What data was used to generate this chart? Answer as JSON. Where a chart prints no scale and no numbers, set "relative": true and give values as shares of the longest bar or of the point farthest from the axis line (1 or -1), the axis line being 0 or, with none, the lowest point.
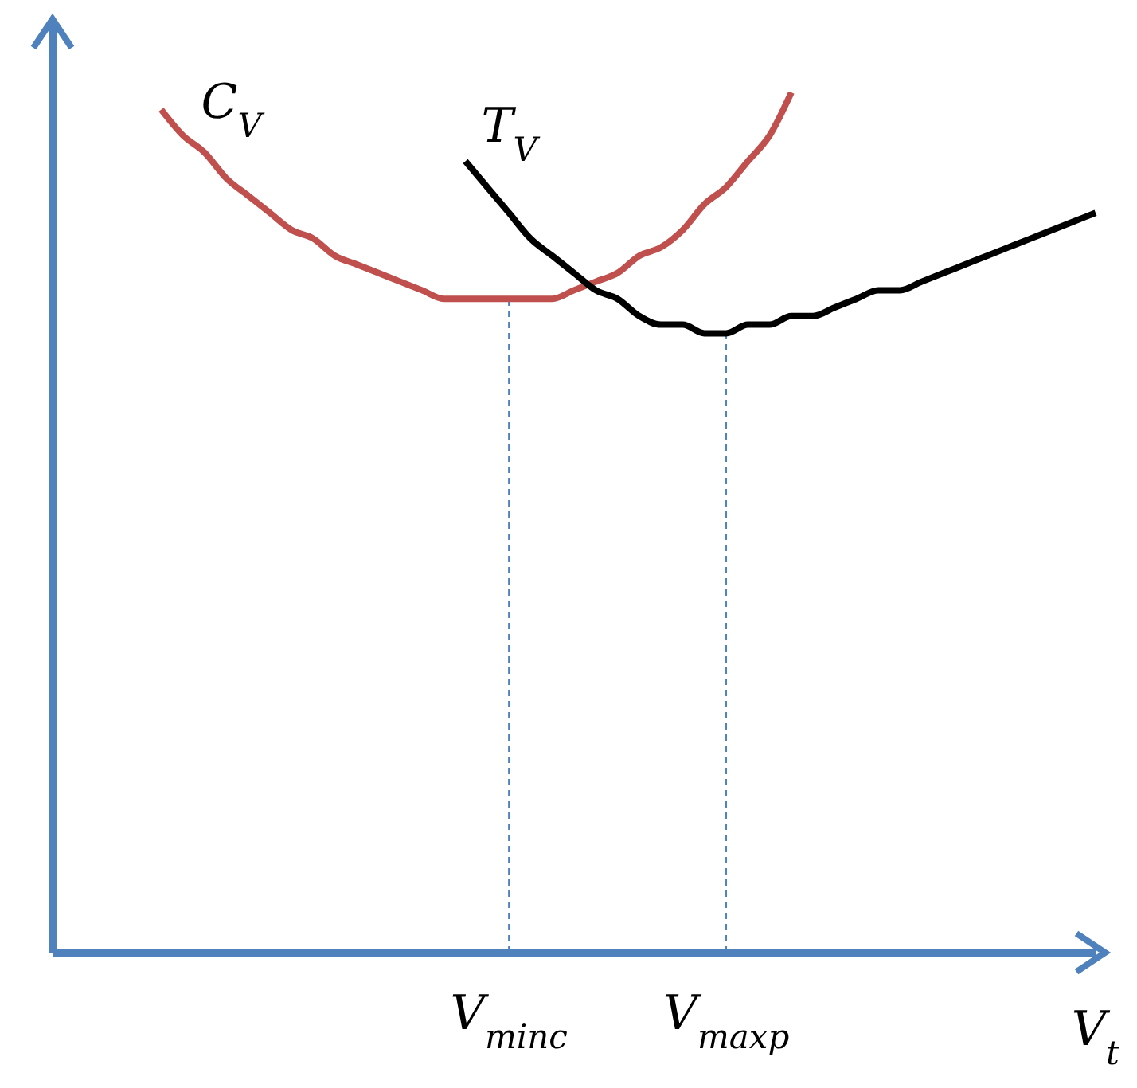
{
  "chart_data": {
    "type": "line",
    "relative": true,
    "xlabel": "V$_{t}$",
    "categories": [
      null,
      null,
      null,
      null,
      null,
      null,
      null,
      null,
      null,
      null,
      null,
      null,
      null,
      null,
      null,
      null,
      null,
      null,
      null,
      null,
      null,
      "V$_{minc}$",
      null,
      null,
      null,
      null,
      null,
      null,
      null,
      null,
      null,
      "V$_{maxp}$",
      null,
      null,
      null,
      null,
      null,
      null,
      null,
      null,
      null,
      null,
      null,
      null,
      null,
      null,
      null,
      null,
      null
    ],
    "series": [
      {
        "name": "C$_{V}$",
        "color": "#c0504d",
        "values": [
          null,
          null,
          null,
          null,
          null,
          0.98,
          0.95,
          0.93,
          0.9,
          0.88,
          0.86,
          0.84,
          0.83,
          0.81,
          0.8,
          0.79,
          0.78,
          0.77,
          0.76,
          0.76,
          0.76,
          0.76,
          0.76,
          0.76,
          0.77,
          0.78,
          0.79,
          0.81,
          0.82,
          0.84,
          0.87,
          0.89,
          0.92,
          0.95,
          1.0,
          null,
          null,
          null,
          null,
          null,
          null,
          null,
          null,
          null,
          null,
          null,
          null,
          null,
          null
        ]
      },
      {
        "name": "T$_{V}$",
        "color": "#000000",
        "values": [
          null,
          null,
          null,
          null,
          null,
          null,
          null,
          null,
          null,
          null,
          null,
          null,
          null,
          null,
          null,
          null,
          null,
          null,
          null,
          0.92,
          0.89,
          0.86,
          0.83,
          0.81,
          0.79,
          0.77,
          0.76,
          0.74,
          0.73,
          0.73,
          0.72,
          0.72,
          0.73,
          0.73,
          0.74,
          0.74,
          0.75,
          0.76,
          0.77,
          0.77,
          0.78,
          0.79,
          0.8,
          0.81,
          0.82,
          0.83,
          0.84,
          0.85,
          0.86
        ]
      }
    ],
    "ref_lines": [
      {
        "axis": "x",
        "value": "V$_{minc}$",
        "color": "#4f81bd",
        "line_style": "dashed"
      },
      {
        "axis": "x",
        "value": "V$_{maxp}$",
        "color": "#4f81bd",
        "line_style": "dashed"
      }
    ],
    "legend": false,
    "grid": false,
    "marker": "none",
    "line_style": "solid"
  }
}
